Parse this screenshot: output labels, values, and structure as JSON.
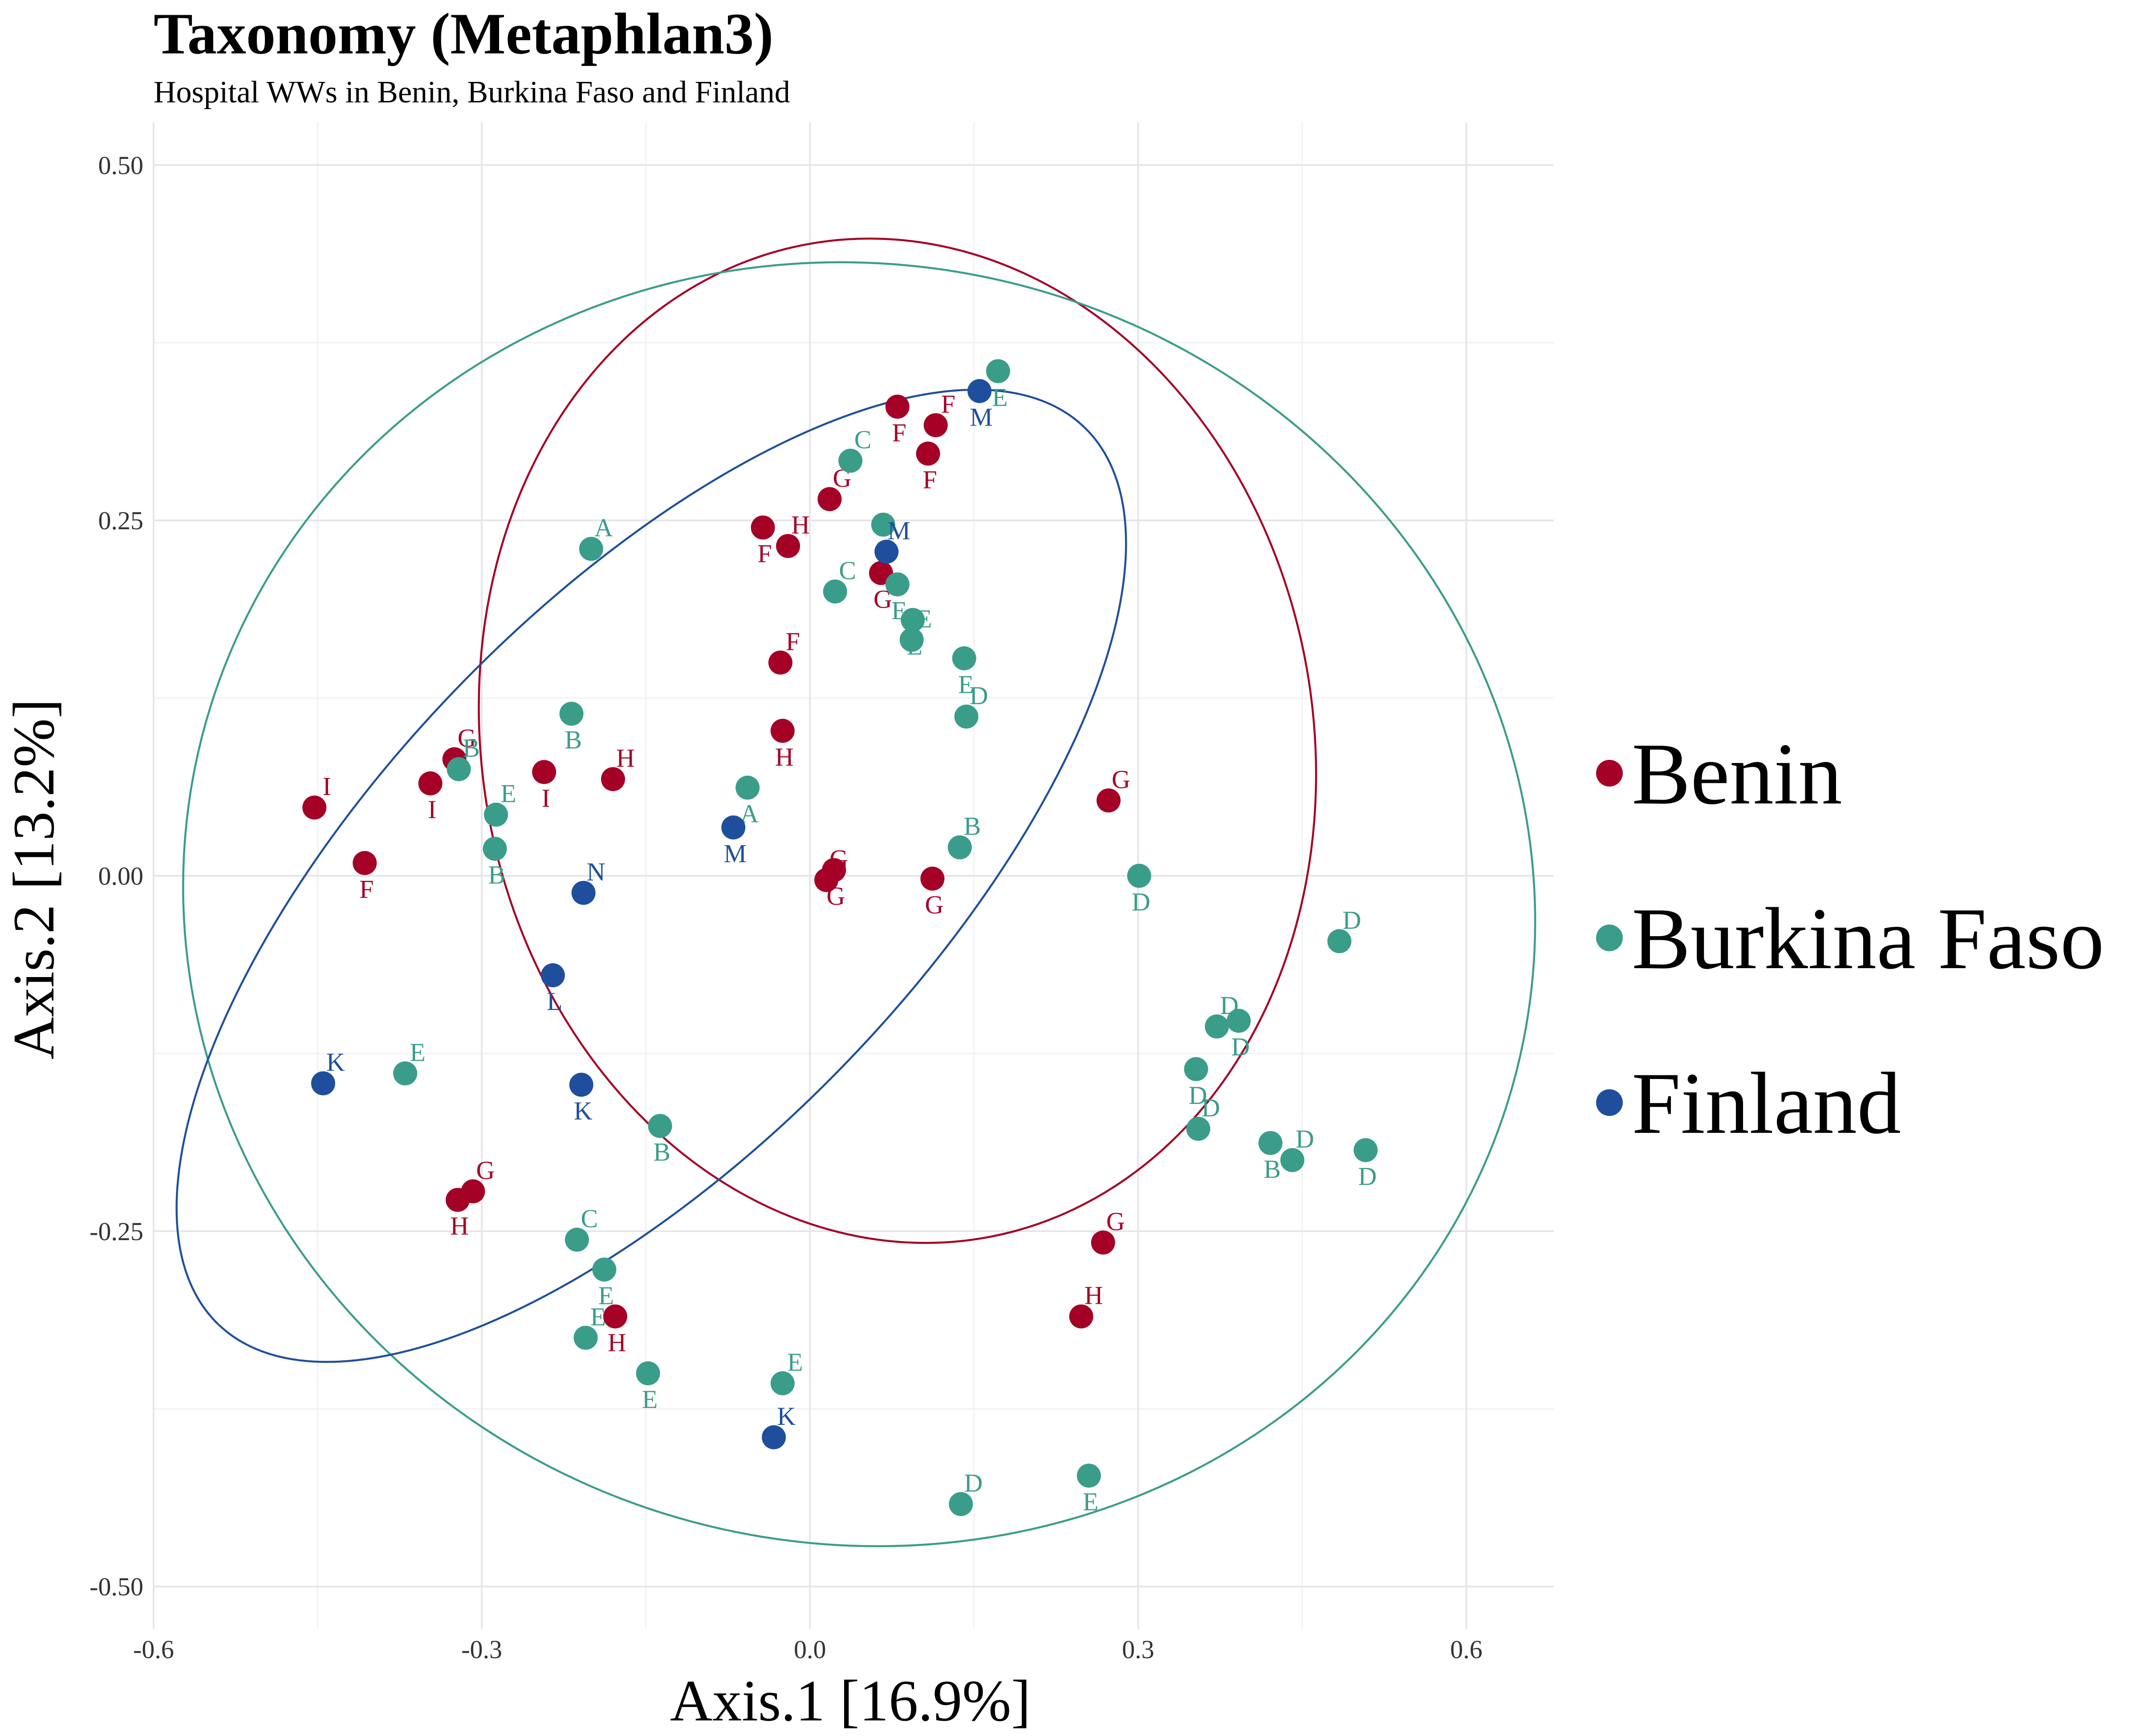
{
  "chart_data": {
    "type": "scatter",
    "title": "Taxonomy (Metaphlan3)",
    "subtitle": "Hospital WWs in Benin, Burkina Faso and Finland",
    "xlabel": "Axis.1   [16.9%]",
    "ylabel": "Axis.2   [13.2%]",
    "xlim": [
      -0.6,
      0.68
    ],
    "ylim": [
      -0.53,
      0.53
    ],
    "xticks": [
      {
        "value": -0.6,
        "label": "-0.6"
      },
      {
        "value": -0.3,
        "label": "-0.3"
      },
      {
        "value": 0.0,
        "label": "0.0"
      },
      {
        "value": 0.3,
        "label": "0.3"
      },
      {
        "value": 0.6,
        "label": "0.6"
      }
    ],
    "yticks": [
      {
        "value": 0.5,
        "label": "0.50"
      },
      {
        "value": 0.25,
        "label": "0.25"
      },
      {
        "value": 0.0,
        "label": "0.00"
      },
      {
        "value": -0.25,
        "label": "-0.25"
      },
      {
        "value": -0.5,
        "label": "-0.50"
      }
    ],
    "grid": true,
    "legend_position": "right",
    "series": [
      {
        "name": "Benin",
        "color": "#a50026",
        "ellipse": {
          "cx": 0.08,
          "cy": 0.095,
          "rx": 0.38,
          "ry": 0.355,
          "angle": 10
        },
        "points": [
          {
            "x": 0.08,
            "y": 0.33,
            "label": "F"
          },
          {
            "x": 0.115,
            "y": 0.317,
            "label": "F"
          },
          {
            "x": 0.108,
            "y": 0.297,
            "label": "F"
          },
          {
            "x": 0.018,
            "y": 0.265,
            "label": "G"
          },
          {
            "x": -0.043,
            "y": 0.245,
            "label": "F"
          },
          {
            "x": -0.02,
            "y": 0.232,
            "label": "H"
          },
          {
            "x": 0.065,
            "y": 0.213,
            "label": "G"
          },
          {
            "x": -0.027,
            "y": 0.15,
            "label": "F"
          },
          {
            "x": -0.025,
            "y": 0.102,
            "label": "H"
          },
          {
            "x": -0.325,
            "y": 0.082,
            "label": "G"
          },
          {
            "x": -0.243,
            "y": 0.073,
            "label": "I"
          },
          {
            "x": -0.18,
            "y": 0.068,
            "label": "H"
          },
          {
            "x": -0.347,
            "y": 0.065,
            "label": "I"
          },
          {
            "x": -0.453,
            "y": 0.048,
            "label": "I"
          },
          {
            "x": -0.407,
            "y": 0.009,
            "label": "F"
          },
          {
            "x": 0.273,
            "y": 0.053,
            "label": "G"
          },
          {
            "x": 0.022,
            "y": 0.004,
            "label": "G"
          },
          {
            "x": 0.015,
            "y": -0.003,
            "label": "G"
          },
          {
            "x": 0.112,
            "y": -0.002,
            "label": "G"
          },
          {
            "x": -0.308,
            "y": -0.222,
            "label": "G"
          },
          {
            "x": -0.322,
            "y": -0.228,
            "label": "H"
          },
          {
            "x": 0.268,
            "y": -0.258,
            "label": "G"
          },
          {
            "x": -0.178,
            "y": -0.31,
            "label": "H"
          },
          {
            "x": 0.248,
            "y": -0.31,
            "label": "H"
          }
        ]
      },
      {
        "name": "Burkina Faso",
        "color": "#3a9d8a",
        "ellipse": {
          "cx": 0.045,
          "cy": -0.02,
          "rx": 0.62,
          "ry": 0.45,
          "angle": -14
        },
        "points": [
          {
            "x": 0.172,
            "y": 0.355,
            "label": "E"
          },
          {
            "x": 0.037,
            "y": 0.292,
            "label": "C"
          },
          {
            "x": 0.067,
            "y": 0.247,
            "label": "E"
          },
          {
            "x": -0.2,
            "y": 0.23,
            "label": "A"
          },
          {
            "x": 0.08,
            "y": 0.205,
            "label": "E"
          },
          {
            "x": 0.023,
            "y": 0.2,
            "label": "C"
          },
          {
            "x": 0.094,
            "y": 0.18,
            "label": "E"
          },
          {
            "x": 0.093,
            "y": 0.166,
            "label": "E"
          },
          {
            "x": 0.141,
            "y": 0.153,
            "label": "E"
          },
          {
            "x": 0.143,
            "y": 0.112,
            "label": "D"
          },
          {
            "x": -0.218,
            "y": 0.114,
            "label": "B"
          },
          {
            "x": -0.321,
            "y": 0.075,
            "label": "B"
          },
          {
            "x": -0.057,
            "y": 0.062,
            "label": "A"
          },
          {
            "x": -0.287,
            "y": 0.043,
            "label": "E"
          },
          {
            "x": -0.288,
            "y": 0.019,
            "label": "B"
          },
          {
            "x": 0.137,
            "y": 0.02,
            "label": "B"
          },
          {
            "x": 0.301,
            "y": 0.0,
            "label": "D"
          },
          {
            "x": 0.484,
            "y": -0.046,
            "label": "D"
          },
          {
            "x": 0.392,
            "y": -0.102,
            "label": "D"
          },
          {
            "x": 0.372,
            "y": -0.106,
            "label": "D"
          },
          {
            "x": 0.353,
            "y": -0.136,
            "label": "D"
          },
          {
            "x": -0.37,
            "y": -0.139,
            "label": "E"
          },
          {
            "x": -0.137,
            "y": -0.176,
            "label": "B"
          },
          {
            "x": 0.355,
            "y": -0.178,
            "label": "D"
          },
          {
            "x": 0.421,
            "y": -0.188,
            "label": "B"
          },
          {
            "x": 0.441,
            "y": -0.2,
            "label": "D"
          },
          {
            "x": 0.508,
            "y": -0.193,
            "label": "D"
          },
          {
            "x": -0.213,
            "y": -0.256,
            "label": "C"
          },
          {
            "x": -0.188,
            "y": -0.277,
            "label": "E"
          },
          {
            "x": -0.205,
            "y": -0.325,
            "label": "E"
          },
          {
            "x": -0.148,
            "y": -0.35,
            "label": "E"
          },
          {
            "x": -0.025,
            "y": -0.357,
            "label": "E"
          },
          {
            "x": 0.255,
            "y": -0.422,
            "label": "E"
          },
          {
            "x": 0.138,
            "y": -0.442,
            "label": "D"
          }
        ]
      },
      {
        "name": "Finland",
        "color": "#1f4f9c",
        "ellipse": {
          "cx": -0.145,
          "cy": 0.0,
          "rx": 0.57,
          "ry": 0.19,
          "angle": 46
        },
        "points": [
          {
            "x": 0.155,
            "y": 0.341,
            "label": "M"
          },
          {
            "x": 0.07,
            "y": 0.228,
            "label": "M"
          },
          {
            "x": -0.07,
            "y": 0.034,
            "label": "M"
          },
          {
            "x": -0.207,
            "y": -0.012,
            "label": "N"
          },
          {
            "x": -0.235,
            "y": -0.07,
            "label": "L"
          },
          {
            "x": -0.445,
            "y": -0.146,
            "label": "K"
          },
          {
            "x": -0.209,
            "y": -0.147,
            "label": "K"
          },
          {
            "x": -0.033,
            "y": -0.395,
            "label": "K"
          }
        ]
      }
    ]
  }
}
